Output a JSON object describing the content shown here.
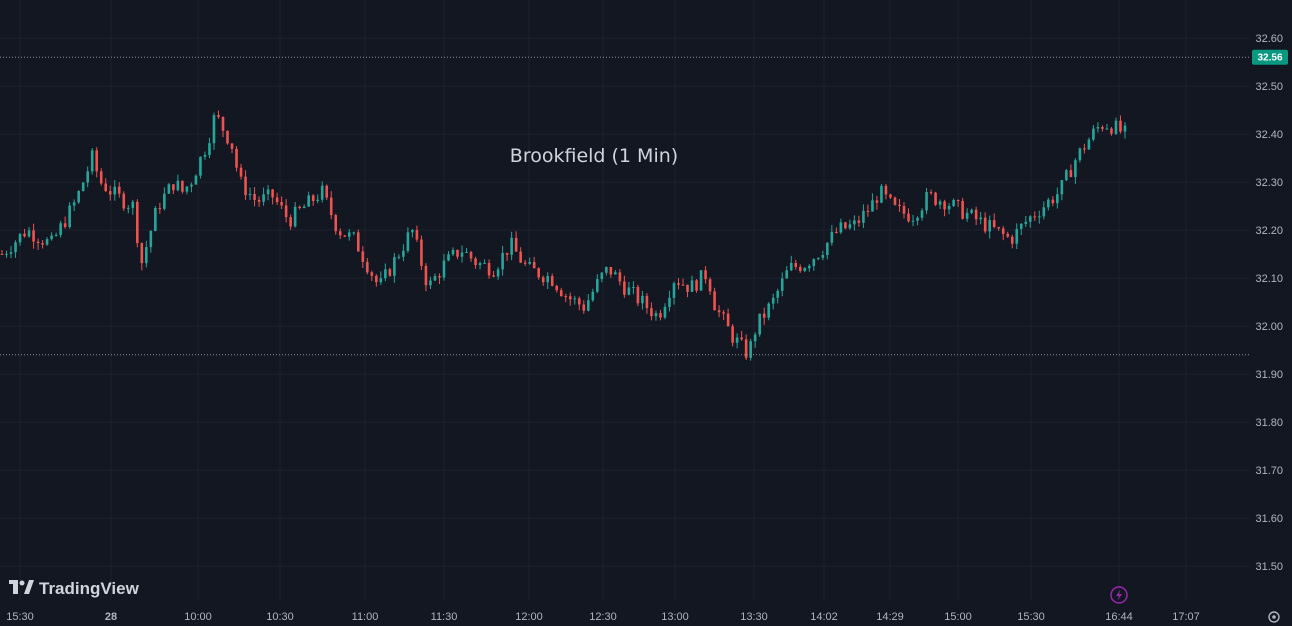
{
  "chart_data": {
    "type": "candlestick",
    "title": "Brookfield (1 Min)",
    "y_ticks": [
      "32.60",
      "32.50",
      "32.40",
      "32.30",
      "32.20",
      "32.10",
      "32.00",
      "31.90",
      "31.80",
      "31.70",
      "31.60",
      "31.50"
    ],
    "ylim": [
      31.45,
      32.65
    ],
    "x_ticks": [
      "15:30",
      "28",
      "10:00",
      "10:30",
      "11:00",
      "11:30",
      "12:00",
      "12:30",
      "13:00",
      "13:30",
      "14:02",
      "14:29",
      "15:00",
      "15:30",
      "16:44",
      "17:07"
    ],
    "last_price": "32.56",
    "last_price_value": 32.56,
    "session_low_value": 31.94,
    "up_color": "#26a69a",
    "down_color": "#ef5350",
    "grid": true,
    "price_path": [
      [
        0,
        32.15
      ],
      [
        3,
        32.2
      ],
      [
        6,
        32.17
      ],
      [
        9,
        32.26
      ],
      [
        11,
        32.35
      ],
      [
        12,
        32.3
      ],
      [
        14,
        32.27
      ],
      [
        16,
        32.25
      ],
      [
        17,
        32.13
      ],
      [
        19,
        32.25
      ],
      [
        21,
        32.3
      ],
      [
        22,
        32.28
      ],
      [
        23,
        32.3
      ],
      [
        25,
        32.38
      ],
      [
        26,
        32.44
      ],
      [
        28,
        32.38
      ],
      [
        29,
        32.3
      ],
      [
        31,
        32.26
      ],
      [
        33,
        32.27
      ],
      [
        35,
        32.22
      ],
      [
        37,
        32.25
      ],
      [
        39,
        32.28
      ],
      [
        41,
        32.2
      ],
      [
        43,
        32.18
      ],
      [
        46,
        32.08
      ],
      [
        48,
        32.14
      ],
      [
        50,
        32.2
      ],
      [
        52,
        32.08
      ],
      [
        54,
        32.13
      ],
      [
        56,
        32.16
      ],
      [
        58,
        32.13
      ],
      [
        60,
        32.12
      ],
      [
        62,
        32.17
      ],
      [
        64,
        32.12
      ],
      [
        67,
        32.1
      ],
      [
        69,
        32.06
      ],
      [
        71,
        32.04
      ],
      [
        73,
        32.1
      ],
      [
        74,
        32.12
      ],
      [
        76,
        32.08
      ],
      [
        78,
        32.05
      ],
      [
        80,
        32.02
      ],
      [
        82,
        32.1
      ],
      [
        84,
        32.08
      ],
      [
        86,
        32.11
      ],
      [
        87,
        32.04
      ],
      [
        89,
        31.98
      ],
      [
        90,
        31.96
      ],
      [
        91,
        31.94
      ],
      [
        92,
        32.0
      ],
      [
        94,
        32.05
      ],
      [
        96,
        32.12
      ],
      [
        98,
        32.13
      ],
      [
        100,
        32.16
      ],
      [
        102,
        32.2
      ],
      [
        104,
        32.21
      ],
      [
        106,
        32.25
      ],
      [
        107,
        32.28
      ],
      [
        109,
        32.24
      ],
      [
        111,
        32.23
      ],
      [
        113,
        32.27
      ],
      [
        115,
        32.26
      ],
      [
        117,
        32.24
      ],
      [
        119,
        32.22
      ],
      [
        121,
        32.2
      ],
      [
        123,
        32.18
      ],
      [
        125,
        32.22
      ],
      [
        127,
        32.25
      ],
      [
        129,
        32.28
      ],
      [
        131,
        32.35
      ],
      [
        133,
        32.4
      ],
      [
        134,
        32.42
      ],
      [
        135,
        32.42
      ],
      [
        136,
        32.41
      ],
      [
        137,
        32.4
      ]
    ]
  },
  "logo": {
    "text": "TradingView"
  },
  "icons": {
    "lightning": "lightning-icon",
    "settings": "settings-icon"
  }
}
